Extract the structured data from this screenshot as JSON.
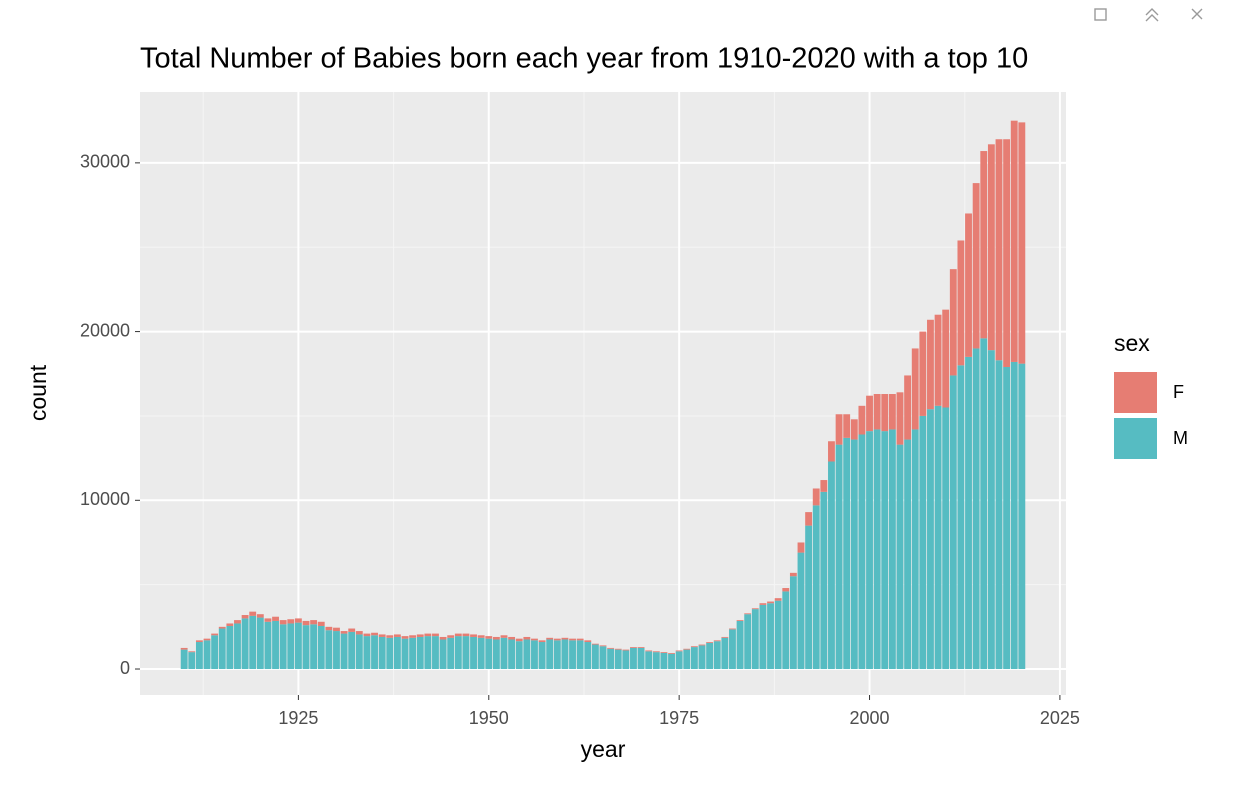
{
  "chart_data": {
    "type": "stacked-bar",
    "title": "Total Number of Babies born each year from 1910-2020 with a top 10",
    "x_label": "year",
    "y_label": "count",
    "legend_title": "sex",
    "legend_position": "right",
    "grid": true,
    "xlim": [
      1904.2,
      2025.8
    ],
    "xticks": [
      1925,
      1950,
      1975,
      2000,
      2025
    ],
    "ylim": [
      -1540,
      34200
    ],
    "yticks": [
      0,
      10000,
      20000,
      30000
    ],
    "x": [
      1910,
      1911,
      1912,
      1913,
      1914,
      1915,
      1916,
      1917,
      1918,
      1919,
      1920,
      1921,
      1922,
      1923,
      1924,
      1925,
      1926,
      1927,
      1928,
      1929,
      1930,
      1931,
      1932,
      1933,
      1934,
      1935,
      1936,
      1937,
      1938,
      1939,
      1940,
      1941,
      1942,
      1943,
      1944,
      1945,
      1946,
      1947,
      1948,
      1949,
      1950,
      1951,
      1952,
      1953,
      1954,
      1955,
      1956,
      1957,
      1958,
      1959,
      1960,
      1961,
      1962,
      1963,
      1964,
      1965,
      1966,
      1967,
      1968,
      1969,
      1970,
      1971,
      1972,
      1973,
      1974,
      1975,
      1976,
      1977,
      1978,
      1979,
      1980,
      1981,
      1982,
      1983,
      1984,
      1985,
      1986,
      1987,
      1988,
      1989,
      1990,
      1991,
      1992,
      1993,
      1994,
      1995,
      1996,
      1997,
      1998,
      1999,
      2000,
      2001,
      2002,
      2003,
      2004,
      2005,
      2006,
      2007,
      2008,
      2009,
      2010,
      2011,
      2012,
      2013,
      2014,
      2015,
      2016,
      2017,
      2018,
      2019,
      2020
    ],
    "series": [
      {
        "name": "M",
        "color": "#56bcc2",
        "values": [
          1150,
          1000,
          1600,
          1700,
          2000,
          2400,
          2550,
          2700,
          3000,
          3150,
          3050,
          2800,
          2850,
          2650,
          2700,
          2750,
          2600,
          2650,
          2550,
          2300,
          2250,
          2100,
          2200,
          2050,
          1950,
          2000,
          1900,
          1850,
          1900,
          1800,
          1850,
          1900,
          1950,
          1950,
          1750,
          1850,
          1950,
          1950,
          1900,
          1850,
          1800,
          1750,
          1850,
          1750,
          1650,
          1750,
          1700,
          1600,
          1750,
          1700,
          1750,
          1700,
          1700,
          1600,
          1450,
          1350,
          1200,
          1150,
          1100,
          1250,
          1250,
          1050,
          1000,
          950,
          900,
          1050,
          1150,
          1300,
          1400,
          1550,
          1650,
          1850,
          2350,
          2850,
          3250,
          3550,
          3800,
          3900,
          4050,
          4600,
          5500,
          6900,
          8500,
          9700,
          10500,
          12300,
          13300,
          13700,
          13600,
          13900,
          14100,
          14200,
          14100,
          14200,
          13300,
          13600,
          14200,
          15000,
          15400,
          15600,
          15500,
          17400,
          18000,
          18500,
          19000,
          19600,
          18900,
          18300,
          17900,
          18200,
          18100
        ]
      },
      {
        "name": "F",
        "color": "#e67d73",
        "values": [
          100,
          50,
          100,
          100,
          100,
          100,
          150,
          200,
          200,
          250,
          200,
          200,
          250,
          250,
          250,
          250,
          250,
          250,
          250,
          200,
          200,
          150,
          200,
          200,
          150,
          150,
          150,
          150,
          150,
          150,
          150,
          150,
          150,
          150,
          150,
          150,
          150,
          150,
          150,
          150,
          150,
          150,
          150,
          150,
          150,
          150,
          100,
          100,
          100,
          100,
          100,
          100,
          100,
          100,
          50,
          50,
          50,
          50,
          50,
          50,
          50,
          50,
          50,
          50,
          50,
          50,
          50,
          50,
          50,
          50,
          50,
          50,
          50,
          50,
          50,
          50,
          100,
          100,
          150,
          200,
          200,
          600,
          800,
          1000,
          700,
          1200,
          1800,
          1400,
          1200,
          1700,
          2100,
          2100,
          2200,
          2100,
          3100,
          3800,
          4800,
          5000,
          5300,
          5400,
          5800,
          6300,
          7400,
          8500,
          9800,
          11100,
          12200,
          13100,
          13500,
          14300,
          14300
        ]
      }
    ]
  }
}
